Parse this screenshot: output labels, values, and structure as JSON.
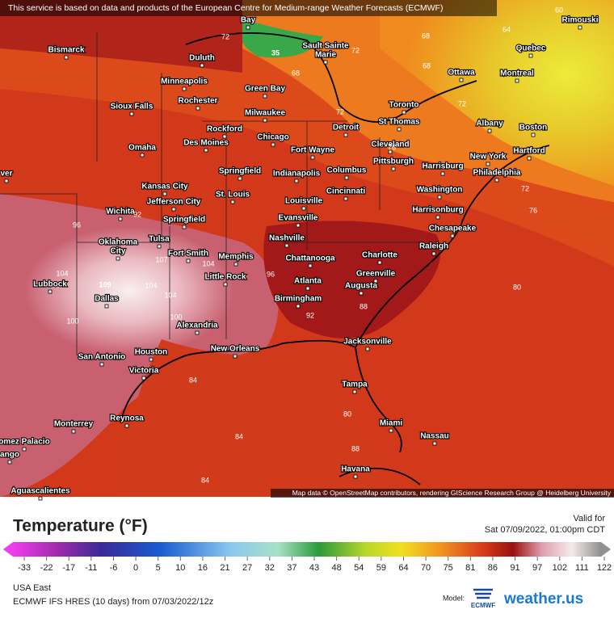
{
  "header": {
    "notice": "This service is based on data and products of the European Centre for Medium-range Weather Forecasts (ECMWF)"
  },
  "map": {
    "cities": [
      "Bay",
      "Bismarck",
      "Duluth",
      "Sault Sainte",
      "Marie",
      "Minneapolis",
      "Rochester",
      "Green Bay",
      "Milwaukee",
      "Sioux Falls",
      "Rockford",
      "Chicago",
      "Des Moines",
      "Omaha",
      "Fort Wayne",
      "Detroit",
      "Toronto",
      "St Thomas",
      "Cleveland",
      "Pittsburgh",
      "Harrisburg",
      "New York",
      "Hartford",
      "Boston",
      "Albany",
      "Montreal",
      "Quebec",
      "Rimouski",
      "Ottawa",
      "Springfield",
      "Indianapolis",
      "Columbus",
      "Philadelphia",
      "Kansas City",
      "Jefferson City",
      "St. Louis",
      "Louisville",
      "Cincinnati",
      "Washington",
      "Harrisonburg",
      "Wichita",
      "Springfield",
      "Evansville",
      "Chesapeake",
      "Tulsa",
      "Nashville",
      "Raleigh",
      "Oklahoma",
      "City",
      "Fort Smith",
      "Memphis",
      "Chattanooga",
      "Charlotte",
      "Greenville",
      "Little Rock",
      "Lubbock",
      "Atlanta",
      "Augusta",
      "Dallas",
      "Birmingham",
      "Alexandria",
      "Houston",
      "New Orleans",
      "Jacksonville",
      "San Antonio",
      "Victoria",
      "Tampa",
      "Reynosa",
      "Monterrey",
      "Miami",
      "Nassau",
      "Havana",
      "omez Palacio",
      "ango",
      "Aguascalientes",
      "ver"
    ],
    "contour_labels": [
      "35",
      "109",
      "104",
      "104",
      "104",
      "107",
      "104",
      "100",
      "100",
      "96",
      "96",
      "92",
      "92",
      "68",
      "60",
      "64",
      "68",
      "72",
      "72",
      "68",
      "72",
      "76",
      "72",
      "72",
      "76",
      "80",
      "84",
      "84",
      "84",
      "80",
      "88",
      "88"
    ],
    "attribution": "Map data © OpenStreetMap contributors, rendering GIScience Research Group @ Heidelberg University"
  },
  "legend": {
    "title": "Temperature (°F)",
    "valid_label": "Valid for",
    "valid_time": "Sat 07/09/2022, 01:00pm CDT",
    "ticks": [
      -33,
      -22,
      -17,
      -11,
      -6,
      0,
      5,
      10,
      16,
      21,
      27,
      32,
      37,
      43,
      48,
      54,
      59,
      64,
      70,
      75,
      81,
      86,
      91,
      97,
      102,
      111,
      122
    ]
  },
  "footer": {
    "region": "USA East",
    "model_run": "ECMWF IFS HRES (10 days) from 07/03/2022/12z",
    "model_label": "Model:",
    "model_logo": "ECMWF",
    "brand": "weather.us"
  }
}
